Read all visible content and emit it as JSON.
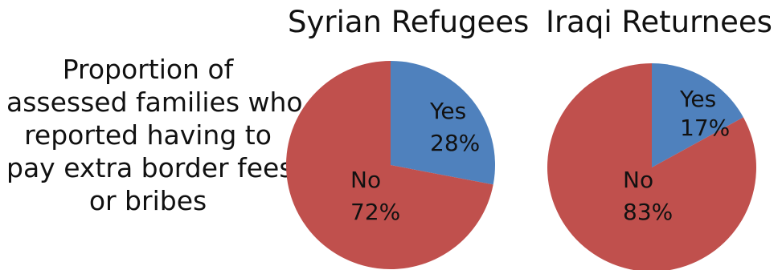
{
  "side_label_lines": [
    "Proportion of",
    "assessed families who",
    "reported having to",
    "pay extra border fees",
    "or bribes"
  ],
  "colors": {
    "yes": "#4f81bd",
    "no": "#c0504d"
  },
  "chart_data": [
    {
      "type": "pie",
      "title": "Syrian Refugees",
      "slices": [
        {
          "label": "Yes",
          "value": 28,
          "display": "28%",
          "color": "#4f81bd"
        },
        {
          "label": "No",
          "value": 72,
          "display": "72%",
          "color": "#c0504d"
        }
      ]
    },
    {
      "type": "pie",
      "title": "Iraqi Returnees",
      "slices": [
        {
          "label": "Yes",
          "value": 17,
          "display": "17%",
          "color": "#4f81bd"
        },
        {
          "label": "No",
          "value": 83,
          "display": "83%",
          "color": "#c0504d"
        }
      ]
    }
  ]
}
